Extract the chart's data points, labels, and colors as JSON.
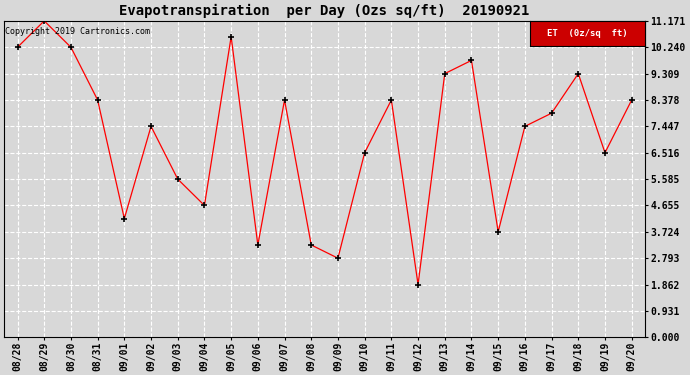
{
  "title": "Evapotranspiration  per Day (Ozs sq/ft)  20190921",
  "copyright": "Copyright 2019 Cartronics.com",
  "legend_label": "ET  (0z/sq  ft)",
  "x_labels": [
    "08/28",
    "08/29",
    "08/30",
    "08/31",
    "09/01",
    "09/02",
    "09/03",
    "09/04",
    "09/05",
    "09/06",
    "09/07",
    "09/08",
    "09/09",
    "09/10",
    "09/11",
    "09/12",
    "09/13",
    "09/14",
    "09/15",
    "09/16",
    "09/17",
    "09/18",
    "09/19",
    "09/20"
  ],
  "y_values": [
    10.24,
    11.171,
    10.24,
    8.378,
    4.19,
    7.447,
    5.585,
    4.655,
    10.612,
    3.259,
    8.378,
    3.259,
    2.793,
    6.516,
    8.378,
    1.862,
    9.309,
    9.775,
    3.724,
    7.447,
    7.912,
    9.309,
    6.516,
    8.378
  ],
  "line_color": "red",
  "marker_color": "black",
  "marker": "+",
  "bg_color": "#d8d8d8",
  "plot_bg_color": "#d8d8d8",
  "grid_color": "white",
  "yticks": [
    0.0,
    0.931,
    1.862,
    2.793,
    3.724,
    4.655,
    5.585,
    6.516,
    7.447,
    8.378,
    9.309,
    10.24,
    11.171
  ],
  "ylim": [
    0.0,
    11.171
  ],
  "legend_bg": "#cc0000",
  "legend_text_color": "white",
  "title_fontsize": 10,
  "tick_fontsize": 7,
  "copyright_fontsize": 6
}
